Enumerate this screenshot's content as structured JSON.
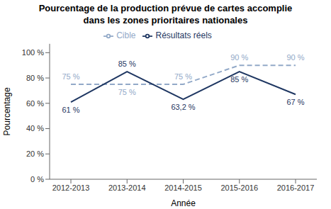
{
  "chart_data": {
    "type": "line",
    "title": "Pourcentage de la production prévue de cartes accomplie",
    "subtitle": "dans les zones prioritaires nationales",
    "x_label": "Année",
    "y_label": "Pourcentage",
    "categories": [
      "2012-2013",
      "2013-2014",
      "2014-2015",
      "2015-2016",
      "2016-2017"
    ],
    "series": [
      {
        "name": "Cible",
        "color": "#92A9C8",
        "line_style": "dashed",
        "values": [
          75,
          75,
          75,
          90,
          90
        ],
        "value_labels": [
          "75 %",
          "75 %",
          "75 %",
          "90 %",
          "90 %"
        ]
      },
      {
        "name": "Résultats réels",
        "color": "#1F3762",
        "line_style": "solid",
        "values": [
          61,
          85,
          63.2,
          85,
          67
        ],
        "value_labels": [
          "61 %",
          "85 %",
          "63,2 %",
          "85 %",
          "67 %"
        ]
      }
    ],
    "ylim": [
      0,
      107
    ],
    "yticks": [
      {
        "value": 0,
        "label": "0 %"
      },
      {
        "value": 20,
        "label": "20 %"
      },
      {
        "value": 40,
        "label": "40 %"
      },
      {
        "value": 60,
        "label": "60 %"
      },
      {
        "value": 80,
        "label": "80 %"
      },
      {
        "value": 100,
        "label": "100 %"
      }
    ],
    "grid": false,
    "legend": "top",
    "data_labels": true
  }
}
